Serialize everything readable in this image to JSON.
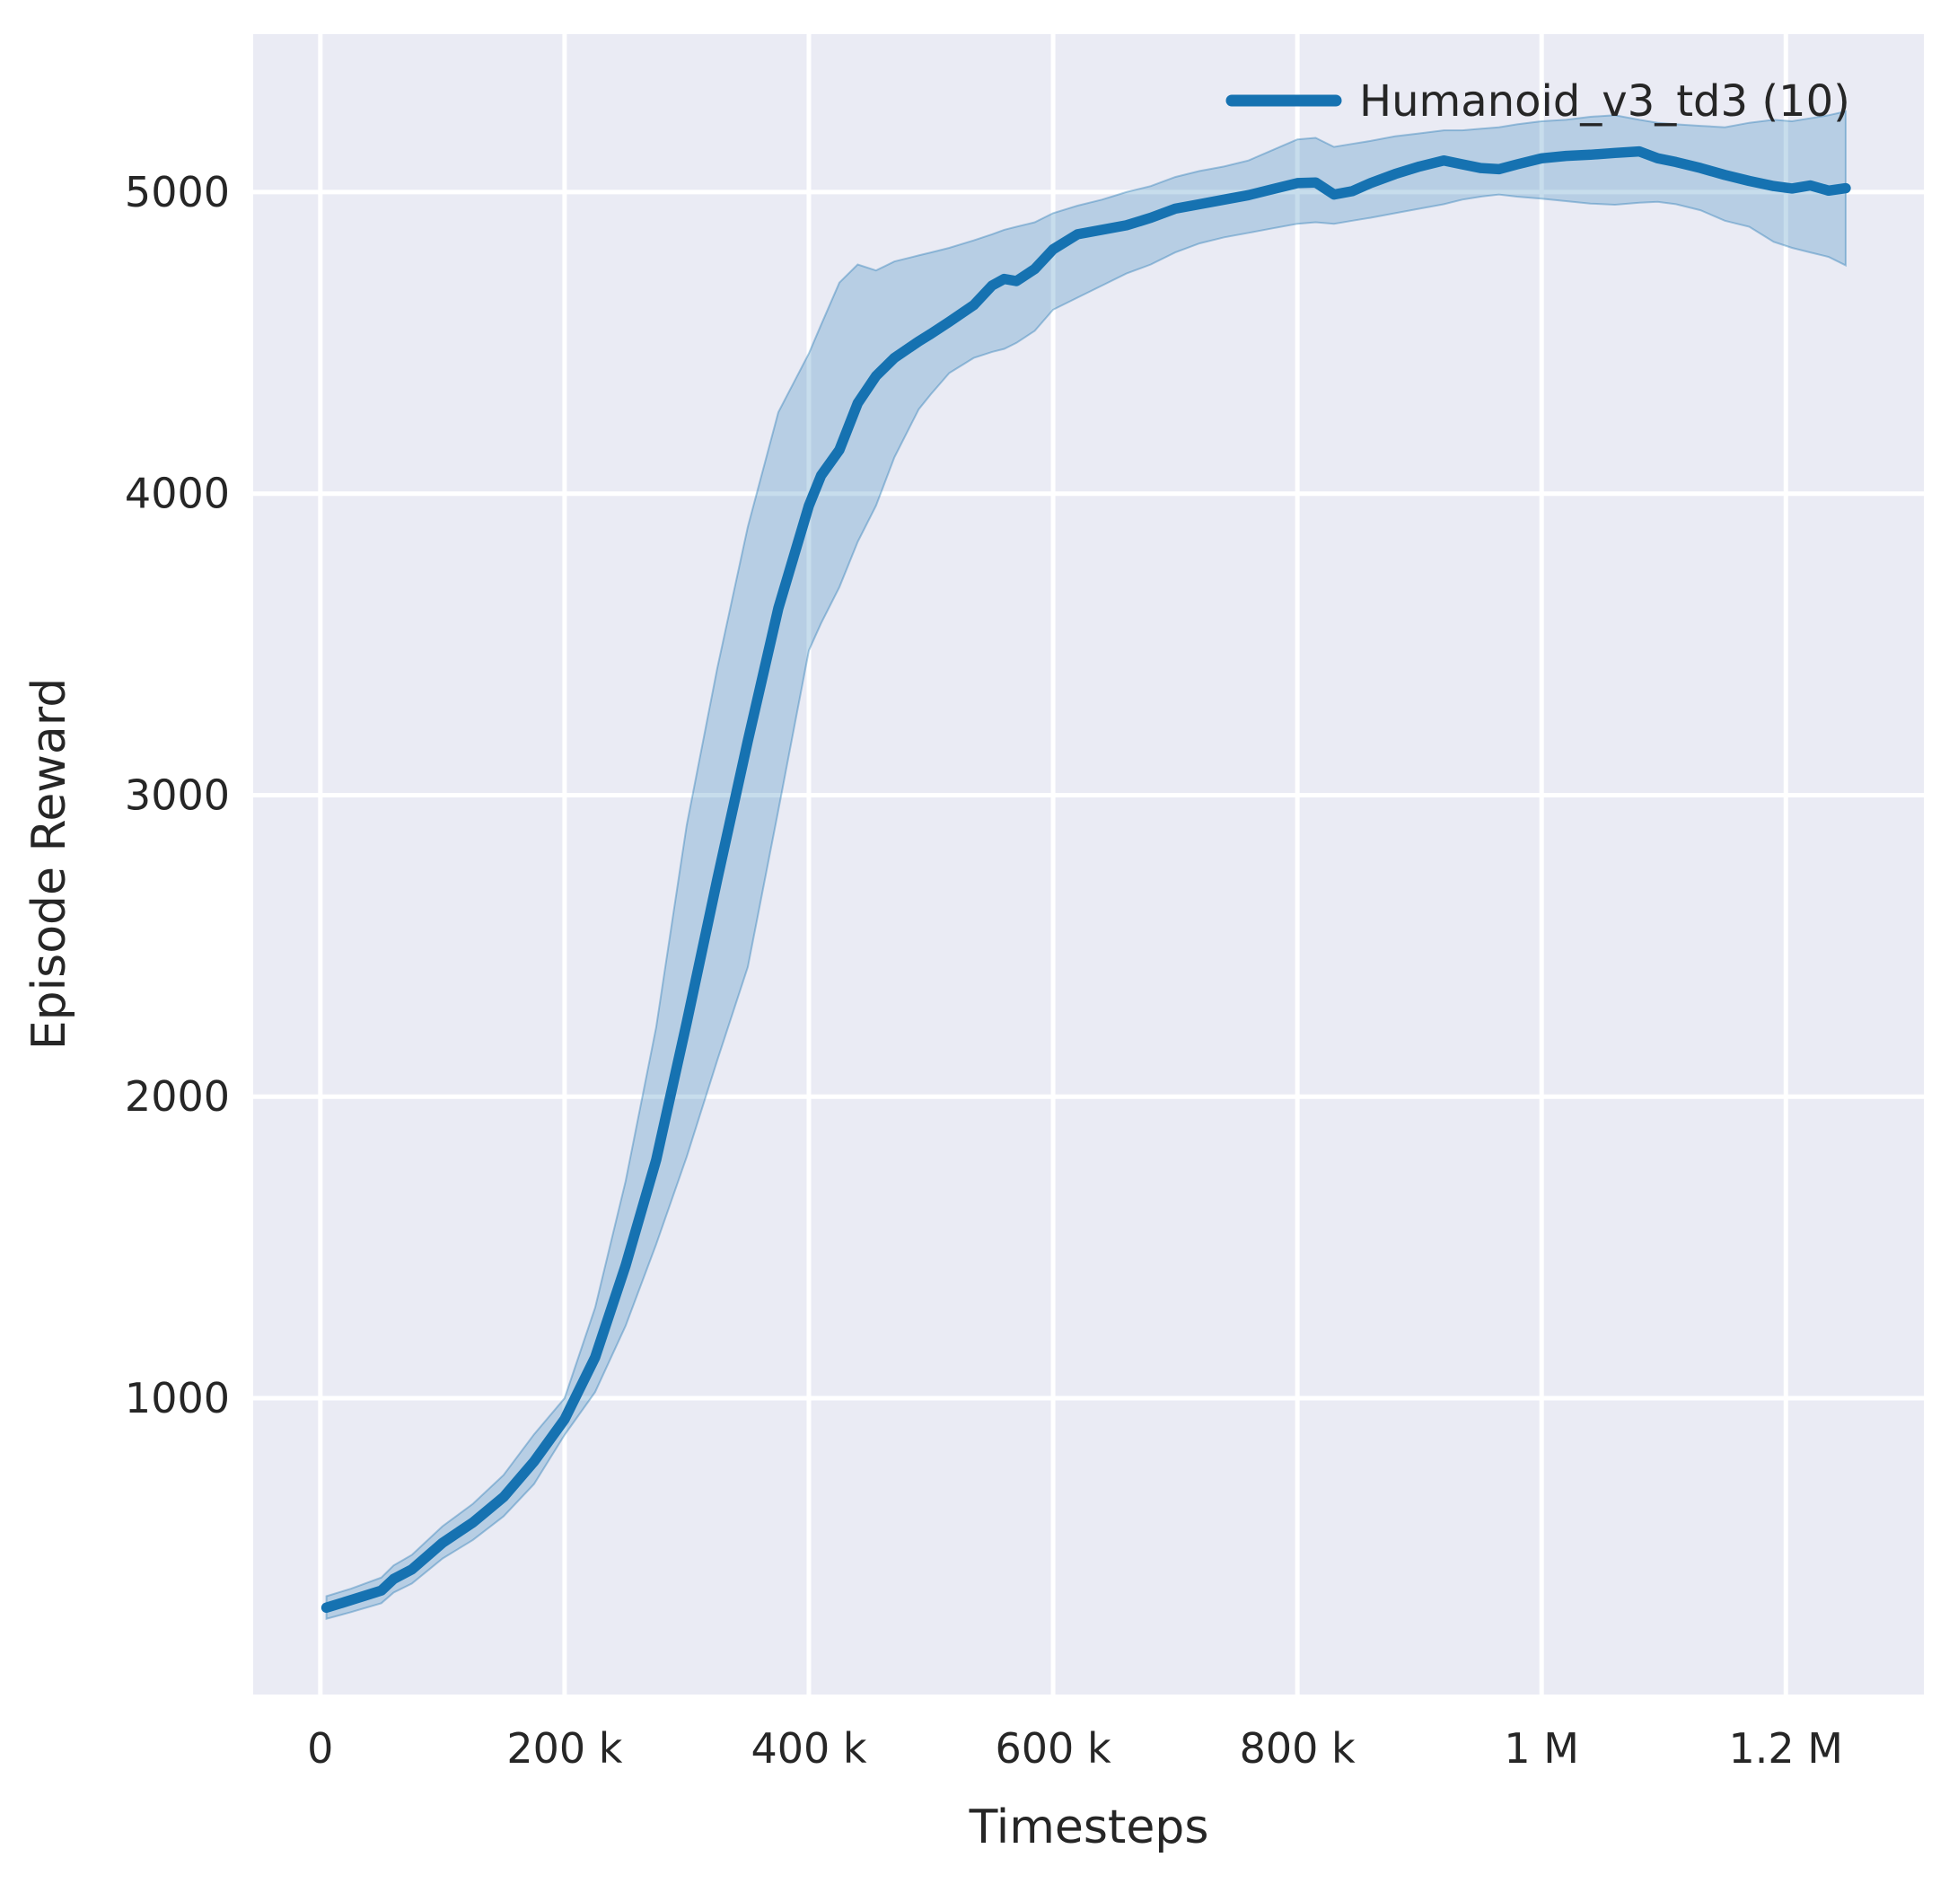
{
  "chart_data": {
    "type": "line",
    "title": "",
    "xlabel": "Timesteps",
    "ylabel": "Episode Reward",
    "legend_position": "upper right",
    "grid": true,
    "background_color": "#eaebf4",
    "grid_color": "#ffffff",
    "text_color": "#262626",
    "xlim": [
      -55000,
      1313000
    ],
    "ylim": [
      17,
      5524
    ],
    "x_ticks": [
      {
        "value": 0,
        "label": "0"
      },
      {
        "value": 200000,
        "label": "200 k"
      },
      {
        "value": 400000,
        "label": "400 k"
      },
      {
        "value": 600000,
        "label": "600 k"
      },
      {
        "value": 800000,
        "label": "800 k"
      },
      {
        "value": 1000000,
        "label": "1 M"
      },
      {
        "value": 1200000,
        "label": "1.2 M"
      }
    ],
    "y_ticks": [
      {
        "value": 1000,
        "label": "1000"
      },
      {
        "value": 2000,
        "label": "2000"
      },
      {
        "value": 3000,
        "label": "3000"
      },
      {
        "value": 4000,
        "label": "4000"
      },
      {
        "value": 5000,
        "label": "5000"
      }
    ],
    "series": [
      {
        "name": "Humanoid_v3_td3 (10)",
        "color": "#1672b1",
        "band_fill_color": "#1f77b4",
        "band_opacity": 0.25,
        "band_edge_opacity": 0.38,
        "x": [
          5000,
          25000,
          50000,
          60000,
          75000,
          100000,
          125000,
          150000,
          175000,
          200000,
          225000,
          250000,
          275000,
          300000,
          325000,
          350000,
          375000,
          400000,
          410000,
          425000,
          440000,
          455000,
          470000,
          490000,
          500000,
          515000,
          535000,
          550000,
          560000,
          570000,
          585000,
          600000,
          620000,
          640000,
          660000,
          680000,
          700000,
          720000,
          740000,
          760000,
          780000,
          800000,
          815000,
          830000,
          845000,
          860000,
          880000,
          900000,
          920000,
          935000,
          950000,
          965000,
          980000,
          1000000,
          1020000,
          1040000,
          1060000,
          1080000,
          1095000,
          1110000,
          1130000,
          1150000,
          1170000,
          1190000,
          1205000,
          1220000,
          1235000,
          1249000
        ],
        "mean": [
          305,
          330,
          362,
          400,
          432,
          520,
          588,
          672,
          790,
          930,
          1135,
          1440,
          1790,
          2245,
          2720,
          3180,
          3620,
          3960,
          4060,
          4145,
          4300,
          4390,
          4450,
          4505,
          4530,
          4570,
          4625,
          4690,
          4712,
          4705,
          4745,
          4810,
          4860,
          4875,
          4890,
          4915,
          4945,
          4960,
          4975,
          4990,
          5010,
          5030,
          5032,
          4992,
          5003,
          5030,
          5060,
          5085,
          5105,
          5092,
          5080,
          5076,
          5092,
          5112,
          5120,
          5124,
          5130,
          5135,
          5112,
          5100,
          5080,
          5057,
          5037,
          5020,
          5012,
          5022,
          5005,
          5013
        ],
        "lower": [
          268,
          290,
          320,
          355,
          385,
          468,
          530,
          608,
          715,
          878,
          1020,
          1240,
          1510,
          1800,
          2120,
          2430,
          2950,
          3480,
          3570,
          3690,
          3840,
          3960,
          4120,
          4280,
          4330,
          4400,
          4450,
          4470,
          4480,
          4500,
          4540,
          4610,
          4650,
          4690,
          4730,
          4760,
          4800,
          4830,
          4850,
          4865,
          4880,
          4895,
          4900,
          4895,
          4905,
          4915,
          4930,
          4945,
          4960,
          4975,
          4985,
          4992,
          4985,
          4978,
          4970,
          4962,
          4958,
          4965,
          4968,
          4960,
          4940,
          4905,
          4885,
          4835,
          4815,
          4800,
          4785,
          4757
        ],
        "upper": [
          343,
          368,
          405,
          445,
          480,
          575,
          650,
          745,
          880,
          1000,
          1300,
          1720,
          2230,
          2900,
          3420,
          3890,
          4270,
          4465,
          4560,
          4700,
          4760,
          4740,
          4770,
          4790,
          4800,
          4815,
          4840,
          4860,
          4875,
          4885,
          4900,
          4930,
          4955,
          4975,
          5000,
          5020,
          5050,
          5070,
          5085,
          5105,
          5140,
          5175,
          5180,
          5150,
          5160,
          5170,
          5185,
          5195,
          5205,
          5205,
          5210,
          5215,
          5225,
          5235,
          5240,
          5250,
          5255,
          5240,
          5230,
          5225,
          5220,
          5215,
          5230,
          5240,
          5235,
          5245,
          5255,
          5268
        ]
      }
    ]
  }
}
